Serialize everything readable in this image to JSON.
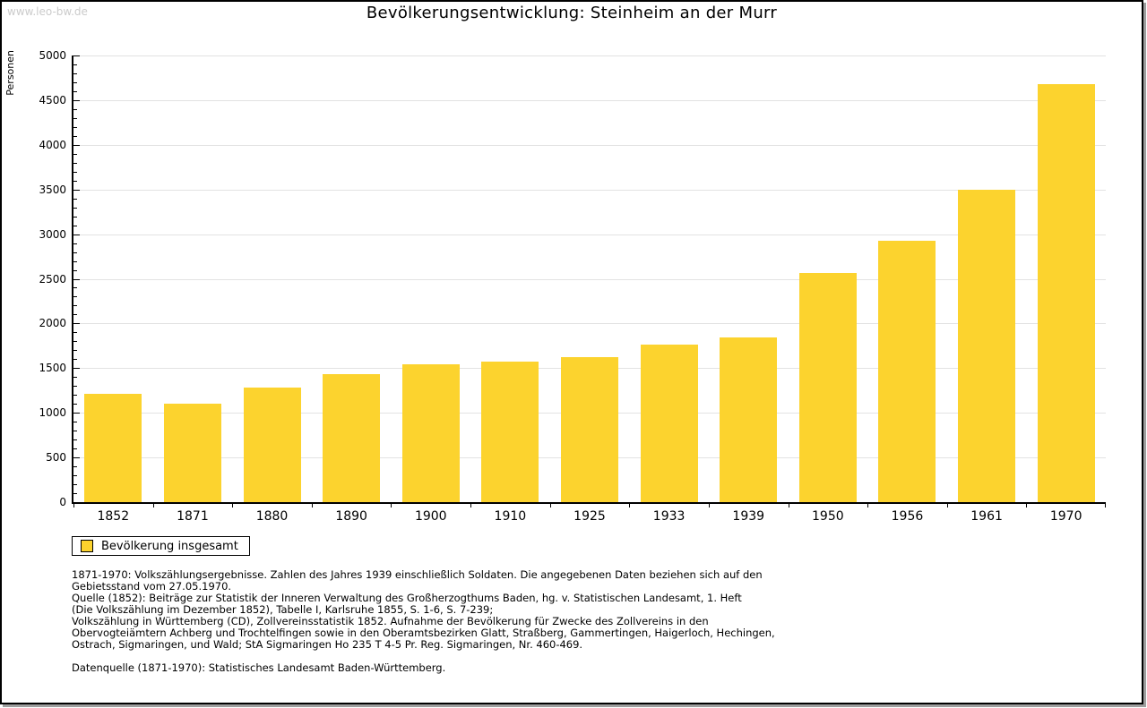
{
  "page": {
    "watermark": "www.leo-bw.de"
  },
  "chart_data": {
    "type": "bar",
    "title": "Bevölkerungsentwicklung: Steinheim an der Murr",
    "xlabel": "",
    "ylabel": "Personen",
    "categories": [
      "1852",
      "1871",
      "1880",
      "1890",
      "1900",
      "1910",
      "1925",
      "1933",
      "1939",
      "1950",
      "1956",
      "1961",
      "1970"
    ],
    "values": [
      1210,
      1100,
      1285,
      1430,
      1540,
      1570,
      1625,
      1765,
      1840,
      2565,
      2930,
      3500,
      4675
    ],
    "ylim": [
      0,
      5000
    ],
    "ytick_step": 500,
    "minor_tick_step": 100,
    "grid": "horizontal",
    "legend_position": "bottom-left"
  },
  "legend": {
    "label": "Bevölkerung insgesamt"
  },
  "colors": {
    "bar": "#fcd32e",
    "grid": "#e2e2e2",
    "axis": "#000000",
    "watermark": "#cbcbcb"
  },
  "footnotes": {
    "lines": [
      "1871-1970: Volkszählungsergebnisse. Zahlen des Jahres 1939 einschließlich Soldaten. Die angegebenen Daten beziehen sich auf den",
      "Gebietsstand vom 27.05.1970.",
      "Quelle (1852): Beiträge zur Statistik der Inneren Verwaltung des Großherzogthums Baden, hg. v. Statistischen Landesamt, 1. Heft",
      "(Die Volkszählung im Dezember 1852), Tabelle I, Karlsruhe 1855, S. 1-6, S. 7-239;",
      "Volkszählung in Württemberg (CD), Zollvereinsstatistik 1852. Aufnahme der Bevölkerung für Zwecke des Zollvereins in den",
      "Obervogteiämtern Achberg und Trochtelfingen sowie in den Oberamtsbezirken Glatt, Straßberg, Gammertingen, Haigerloch, Hechingen,",
      "Ostrach, Sigmaringen, und Wald; StA Sigmaringen Ho 235 T 4-5 Pr. Reg. Sigmaringen, Nr. 460-469."
    ],
    "datasource": "Datenquelle (1871-1970): Statistisches Landesamt Baden-Württemberg."
  }
}
